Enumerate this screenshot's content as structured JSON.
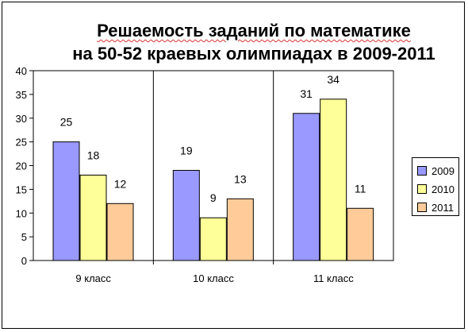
{
  "title_line1": "Решаемость заданий по математике",
  "title_line2": "на 50-52 краевых олимпиадах в 2009-2011",
  "chart_data": {
    "type": "bar",
    "title": "Решаемость заданий по математике на 50-52 краевых олимпиадах в 2009-2011",
    "categories": [
      "9 класс",
      "10 класс",
      "11 класс"
    ],
    "series": [
      {
        "name": "2009",
        "color": "#9999ff",
        "values": [
          25,
          19,
          31
        ],
        "labels": [
          "25",
          "19",
          "31"
        ]
      },
      {
        "name": "2010",
        "color": "#ffff99",
        "values": [
          18,
          9,
          34
        ],
        "labels": [
          "18",
          "9",
          "34"
        ]
      },
      {
        "name": "2011",
        "color": "#ffcc99",
        "values": [
          12,
          13,
          11
        ],
        "labels": [
          "12",
          "13",
          "11"
        ]
      }
    ],
    "ylim": [
      0,
      40
    ],
    "yticks": [
      "0",
      "5",
      "10",
      "15",
      "20",
      "25",
      "30",
      "35",
      "40"
    ],
    "grid": false,
    "legend": "right"
  }
}
